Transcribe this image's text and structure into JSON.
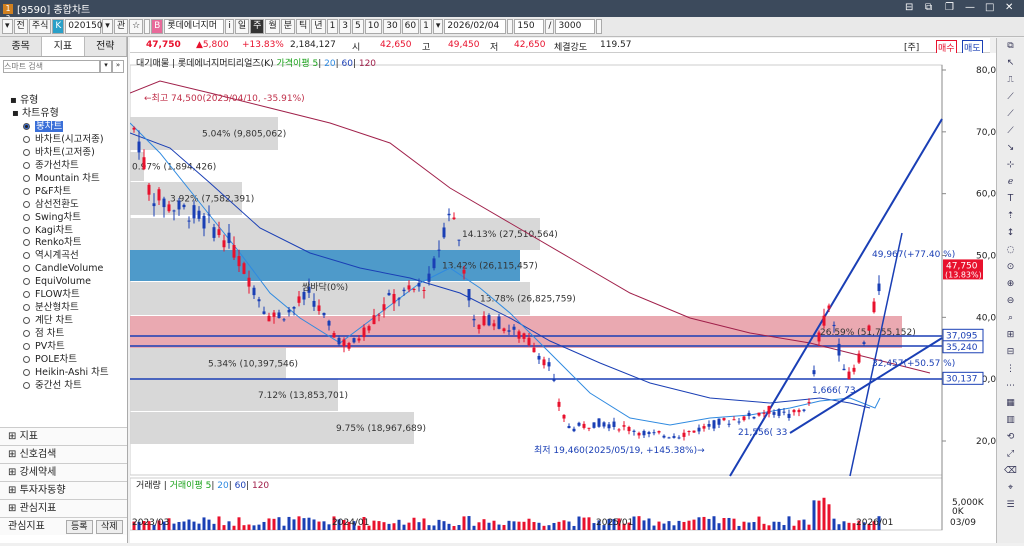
{
  "title": {
    "code": "[9590] 종합차트",
    "icon": "1 ?"
  },
  "toolbar": {
    "items": [
      "▾",
      "전",
      "주식",
      "K",
      "020150",
      "▾",
      "관",
      "☆",
      "",
      "B",
      "롯데에너지머",
      "i",
      "일",
      "주",
      "월",
      "분",
      "틱",
      "년",
      "1",
      "3",
      "5",
      "10",
      "30",
      "60",
      "1",
      "▾",
      "2026/02/04",
      "",
      "150",
      "/",
      "3000",
      ""
    ],
    "selected": "주"
  },
  "info": {
    "price": "47,750",
    "change": "▲5,800",
    "rate": "+13.83%",
    "volume": "2,184,127",
    "open_label": "시",
    "open": "42,650",
    "high_label": "고",
    "high": "49,450",
    "low_label": "저",
    "low": "42,650",
    "strength_label": "체결강도",
    "strength": "119.57",
    "ju": "[주]",
    "buy": "매수",
    "sell": "매도"
  },
  "left": {
    "tabs": [
      "종목",
      "지표",
      "전략"
    ],
    "search_placeholder": "스마트 검색",
    "group": "유형",
    "subgroup": "차트유형",
    "items": [
      "봉차트",
      "바차트(시고저종)",
      "바차트(고저종)",
      "종가선차트",
      "Mountain 차트",
      "P&F차트",
      "삼선전환도",
      "Swing차트",
      "Kagi차트",
      "Renko차트",
      "역시계곡선",
      "CandleVolume",
      "EquiVolume",
      "FLOW차트",
      "분산형차트",
      "계단 차트",
      "점 차트",
      "PV차트",
      "POLE차트",
      "Heikin-Ashi 차트",
      "중간선 차트"
    ],
    "selected": 0,
    "bottom": [
      "지표",
      "신호검색",
      "강세약세",
      "투자자동향",
      "관심지표"
    ],
    "fav_label": "관심지표",
    "btn_reg": "등록",
    "btn_del": "삭제"
  },
  "chart": {
    "price_legend": "대기매물 | 롯데에너지머티리얼즈(K)",
    "ma_label": "가격이평",
    "ma": [
      "5",
      "20",
      "60",
      "120"
    ],
    "vol_legend": "거래량",
    "vol_ma_label": "거래이평",
    "vol_ma": [
      "5",
      "20",
      "60",
      "120"
    ],
    "y_ticks": [
      "80,000",
      "70,000",
      "60,000",
      "50,000",
      "40,000",
      "30,000",
      "20,000"
    ],
    "vol_ticks": [
      "5,000K",
      "0K"
    ],
    "x_ticks": [
      "2023/03",
      "2024/01",
      "2025/01",
      "2026/01",
      "03/09"
    ],
    "price_tags": [
      {
        "text": "47,750",
        "sub": "(13.83%)",
        "color": "#e8112d"
      },
      {
        "text": "37,095",
        "color": "#ffffff"
      },
      {
        "text": "35,240",
        "color": "#ffffff"
      },
      {
        "text": "30,137",
        "color": "#ffffff"
      }
    ],
    "zone_labels": [
      "5.04% (9,805,062)",
      "0.97% (1,894,426)",
      "3.92% (7,582,391)",
      "14.13% (27,510,564)",
      "13.42% (26,115,457)",
      "13.78% (26,825,759)",
      "26.59% (51,755,152)",
      "5.34% (10,397,546)",
      "7.12% (13,853,701)",
      "9.75% (18,967,689)"
    ],
    "annotations": [
      "←최고 74,500(2023/04/10, -35.91%)",
      "최저 19,460(2025/05/19, +145.38%)→",
      "49,967(+77.40 %)",
      "32,457(+50.57 %)",
      "21,556( 33",
      "1,666( 73",
      "쌍바닥(0%)"
    ]
  },
  "colors": {
    "up": "#e8112d",
    "down": "#1a3fb5"
  }
}
